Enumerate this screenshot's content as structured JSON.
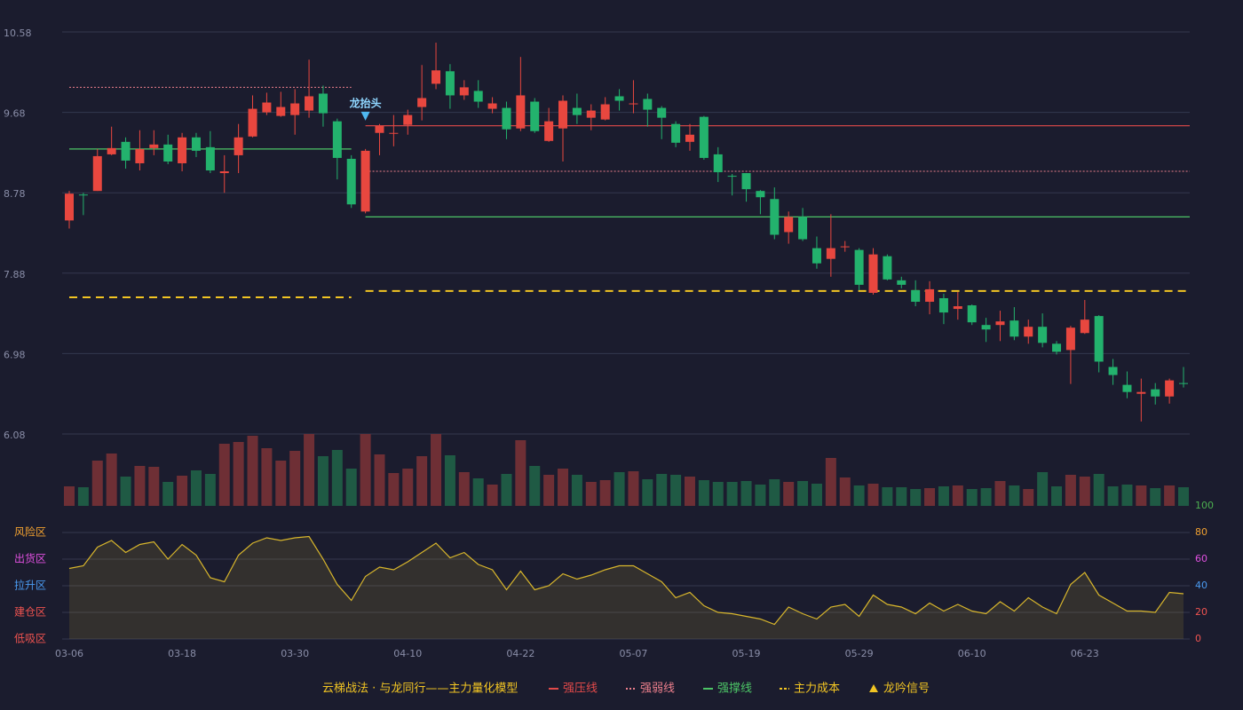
{
  "chart_data": {
    "type": "candlestick",
    "title": "云梯战法 · 与龙同行——主力量化模型",
    "categories": [
      "03-06",
      null,
      null,
      null,
      null,
      null,
      null,
      null,
      "03-18",
      null,
      null,
      null,
      null,
      null,
      null,
      null,
      "03-30",
      null,
      null,
      null,
      null,
      null,
      null,
      null,
      "04-10",
      null,
      null,
      null,
      null,
      null,
      null,
      null,
      "04-22",
      null,
      null,
      null,
      null,
      null,
      null,
      null,
      "05-07",
      null,
      null,
      null,
      null,
      null,
      null,
      null,
      "05-19",
      null,
      null,
      null,
      null,
      null,
      null,
      null,
      "05-29",
      null,
      null,
      null,
      null,
      null,
      null,
      null,
      "06-10",
      null,
      null,
      null,
      null,
      null,
      null,
      null,
      "06-23",
      null,
      null,
      null,
      null,
      null,
      null,
      null
    ],
    "open": [
      8.47,
      8.76,
      8.8,
      9.21,
      9.35,
      9.11,
      9.28,
      9.32,
      9.11,
      9.4,
      9.29,
      9.0,
      9.2,
      9.41,
      9.68,
      9.64,
      9.65,
      9.7,
      9.89,
      9.58,
      9.16,
      8.57,
      9.45,
      9.44,
      9.54,
      9.74,
      10.0,
      10.14,
      9.87,
      9.92,
      9.72,
      9.73,
      9.5,
      9.8,
      9.36,
      9.5,
      9.73,
      9.62,
      9.6,
      9.86,
      9.77,
      9.83,
      9.73,
      9.55,
      9.35,
      9.63,
      9.21,
      8.97,
      9.0,
      8.8,
      8.71,
      8.34,
      8.51,
      8.16,
      8.04,
      8.17,
      8.14,
      7.66,
      8.07,
      7.8,
      7.69,
      7.56,
      7.6,
      7.48,
      7.52,
      7.3,
      7.3,
      7.35,
      7.17,
      7.28,
      7.09,
      7.02,
      7.21,
      7.4,
      6.83,
      6.63,
      6.53,
      6.58,
      6.5,
      6.65
    ],
    "close": [
      8.77,
      8.75,
      9.19,
      9.28,
      9.14,
      9.27,
      9.32,
      9.13,
      9.4,
      9.25,
      9.03,
      9.02,
      9.4,
      9.72,
      9.79,
      9.74,
      9.78,
      9.86,
      9.67,
      9.17,
      8.65,
      9.25,
      9.53,
      9.45,
      9.65,
      9.84,
      10.15,
      9.87,
      9.96,
      9.8,
      9.78,
      9.49,
      9.87,
      9.47,
      9.58,
      9.81,
      9.65,
      9.7,
      9.77,
      9.81,
      9.78,
      9.71,
      9.62,
      9.34,
      9.43,
      9.17,
      9.01,
      8.96,
      8.82,
      8.73,
      8.31,
      8.51,
      8.26,
      7.99,
      8.16,
      8.18,
      7.75,
      8.09,
      7.81,
      7.75,
      7.56,
      7.7,
      7.44,
      7.51,
      7.33,
      7.25,
      7.34,
      7.17,
      7.28,
      7.1,
      7.0,
      7.27,
      7.36,
      6.89,
      6.74,
      6.55,
      6.55,
      6.5,
      6.68,
      6.64
    ],
    "high": [
      8.8,
      8.78,
      9.27,
      9.52,
      9.4,
      9.48,
      9.48,
      9.43,
      9.45,
      9.45,
      9.47,
      9.2,
      9.55,
      9.87,
      9.9,
      9.91,
      9.94,
      10.27,
      9.98,
      9.61,
      9.2,
      9.27,
      9.55,
      9.65,
      9.71,
      10.21,
      10.46,
      10.22,
      10.04,
      10.04,
      9.85,
      9.8,
      10.3,
      9.84,
      9.73,
      9.87,
      9.89,
      9.77,
      9.85,
      9.94,
      10.04,
      9.89,
      9.75,
      9.58,
      9.55,
      9.64,
      9.29,
      8.99,
      9.0,
      8.81,
      8.84,
      8.57,
      8.61,
      8.29,
      8.54,
      8.24,
      8.16,
      8.16,
      8.09,
      7.84,
      7.8,
      7.79,
      7.65,
      7.67,
      7.53,
      7.38,
      7.46,
      7.5,
      7.36,
      7.43,
      7.12,
      7.29,
      7.58,
      7.41,
      6.92,
      6.78,
      6.7,
      6.65,
      6.7,
      6.83
    ],
    "low": [
      8.38,
      8.53,
      8.8,
      9.2,
      9.05,
      9.03,
      9.2,
      9.1,
      9.02,
      9.18,
      9.0,
      8.78,
      9.0,
      9.4,
      9.65,
      9.63,
      9.43,
      9.62,
      9.52,
      8.93,
      8.61,
      8.55,
      9.2,
      9.3,
      9.43,
      9.59,
      9.94,
      9.72,
      9.82,
      9.73,
      9.67,
      9.38,
      9.47,
      9.45,
      9.35,
      9.13,
      9.55,
      9.48,
      9.59,
      9.7,
      9.67,
      9.52,
      9.38,
      9.29,
      9.25,
      9.15,
      8.9,
      8.75,
      8.68,
      8.54,
      8.26,
      8.21,
      8.24,
      7.93,
      7.84,
      8.12,
      7.69,
      7.64,
      7.8,
      7.71,
      7.51,
      7.42,
      7.31,
      7.36,
      7.3,
      7.11,
      7.12,
      7.13,
      7.09,
      7.05,
      6.97,
      6.64,
      7.2,
      6.77,
      6.63,
      6.48,
      6.22,
      6.41,
      6.42,
      6.6
    ],
    "up_color": "#e8473f",
    "down_color": "#23b26d",
    "ylim": [
      6.08,
      10.58
    ],
    "yticks": [
      6.08,
      6.98,
      7.88,
      8.78,
      9.68,
      10.58
    ],
    "grid": true,
    "volume": {
      "values": [
        22,
        21,
        51,
        59,
        33,
        45,
        44,
        27,
        34,
        40,
        36,
        70,
        72,
        79,
        65,
        51,
        62,
        81,
        56,
        63,
        42,
        81,
        58,
        37,
        42,
        56,
        81,
        57,
        38,
        31,
        24,
        36,
        74,
        45,
        35,
        42,
        35,
        27,
        29,
        38,
        39,
        30,
        36,
        35,
        33,
        29,
        27,
        27,
        28,
        24,
        30,
        27,
        28,
        25,
        54,
        32,
        23,
        25,
        21,
        21,
        19,
        20,
        22,
        23,
        19,
        20,
        28,
        23,
        19,
        38,
        22,
        35,
        33,
        36,
        22,
        24,
        23,
        20,
        23,
        21
      ],
      "ylim": [
        0,
        81
      ],
      "up_color": "#6e2f35",
      "down_color": "#1f5a44"
    },
    "levels": [
      {
        "name": "强压线",
        "color": "#e24a4a",
        "dash": "none",
        "width": 1.2,
        "values": [
          null,
          null,
          null,
          null,
          null,
          null,
          null,
          null,
          null,
          null,
          null,
          null,
          null,
          null,
          null,
          null,
          null,
          null,
          null,
          null,
          null,
          9.53,
          9.53,
          9.53,
          9.53,
          9.53,
          9.53,
          9.53,
          9.53,
          9.53,
          9.53,
          9.53,
          9.53,
          9.53,
          9.53,
          9.53,
          9.53,
          9.53,
          9.53,
          9.53,
          9.53,
          9.53,
          9.53,
          9.53,
          9.53,
          9.53,
          9.53,
          9.53,
          9.53,
          9.53,
          9.53,
          9.53,
          9.53,
          9.53,
          9.53,
          9.53,
          9.53,
          9.53,
          9.53,
          9.53,
          9.53,
          9.53,
          9.53,
          9.53,
          9.53,
          9.53,
          9.53,
          9.53,
          9.53,
          9.53,
          9.53,
          9.53,
          9.53,
          9.53,
          9.53,
          9.53,
          9.53,
          9.53,
          9.53,
          9.53
        ]
      },
      {
        "name": "强弱线",
        "color": "#ec7f8c",
        "dash": "2,2",
        "width": 1,
        "values": [
          9.96,
          9.96,
          9.96,
          9.96,
          9.96,
          9.96,
          9.96,
          9.96,
          9.96,
          9.96,
          9.96,
          9.96,
          9.96,
          9.96,
          9.96,
          9.96,
          9.96,
          9.96,
          9.96,
          9.96,
          9.96,
          9.02,
          9.02,
          9.02,
          9.02,
          9.02,
          9.02,
          9.02,
          9.02,
          9.02,
          9.02,
          9.02,
          9.02,
          9.02,
          9.02,
          9.02,
          9.02,
          9.02,
          9.02,
          9.02,
          9.02,
          9.02,
          9.02,
          9.02,
          9.02,
          9.02,
          9.02,
          9.02,
          9.02,
          9.02,
          9.02,
          9.02,
          9.02,
          9.02,
          9.02,
          9.02,
          9.02,
          9.02,
          9.02,
          9.02,
          9.02,
          9.02,
          9.02,
          9.02,
          9.02,
          9.02,
          9.02,
          9.02,
          9.02,
          9.02,
          9.02,
          9.02,
          9.02,
          9.02,
          9.02,
          9.02,
          9.02,
          9.02,
          9.02,
          9.02
        ]
      },
      {
        "name": "强撑线",
        "color": "#4cc466",
        "dash": "none",
        "width": 1.2,
        "values": [
          9.27,
          9.27,
          9.27,
          9.27,
          9.27,
          9.27,
          9.27,
          9.27,
          9.27,
          9.27,
          9.27,
          9.27,
          9.27,
          9.27,
          9.27,
          9.27,
          9.27,
          9.27,
          9.27,
          9.27,
          9.27,
          8.51,
          8.51,
          8.51,
          8.51,
          8.51,
          8.51,
          8.51,
          8.51,
          8.51,
          8.51,
          8.51,
          8.51,
          8.51,
          8.51,
          8.51,
          8.51,
          8.51,
          8.51,
          8.51,
          8.51,
          8.51,
          8.51,
          8.51,
          8.51,
          8.51,
          8.51,
          8.51,
          8.51,
          8.51,
          8.51,
          8.51,
          8.51,
          8.51,
          8.51,
          8.51,
          8.51,
          8.51,
          8.51,
          8.51,
          8.51,
          8.51,
          8.51,
          8.51,
          8.51,
          8.51,
          8.51,
          8.51,
          8.51,
          8.51,
          8.51,
          8.51,
          8.51,
          8.51,
          8.51,
          8.51,
          8.51,
          8.51,
          8.51,
          8.51
        ]
      },
      {
        "name": "主力成本",
        "color": "#f2c523",
        "dash": "9,6",
        "width": 2,
        "values": [
          7.61,
          7.61,
          7.61,
          7.61,
          7.61,
          7.61,
          7.61,
          7.61,
          7.61,
          7.61,
          7.61,
          7.61,
          7.61,
          7.61,
          7.61,
          7.61,
          7.61,
          7.61,
          7.61,
          7.61,
          7.61,
          7.68,
          7.68,
          7.68,
          7.68,
          7.68,
          7.68,
          7.68,
          7.68,
          7.68,
          7.68,
          7.68,
          7.68,
          7.68,
          7.68,
          7.68,
          7.68,
          7.68,
          7.68,
          7.68,
          7.68,
          7.68,
          7.68,
          7.68,
          7.68,
          7.68,
          7.68,
          7.68,
          7.68,
          7.68,
          7.68,
          7.68,
          7.68,
          7.68,
          7.68,
          7.68,
          7.68,
          7.68,
          7.68,
          7.68,
          7.68,
          7.68,
          7.68,
          7.68,
          7.68,
          7.68,
          7.68,
          7.68,
          7.68,
          7.68,
          7.68,
          7.68,
          7.68,
          7.68,
          7.68,
          7.68,
          7.68,
          7.68,
          7.68,
          7.68
        ]
      }
    ],
    "signal": {
      "name": "龙吟信号",
      "color": "#f2c523",
      "marker_color": "#4fb8f0",
      "labels": [
        null,
        null,
        null,
        null,
        null,
        null,
        null,
        null,
        null,
        null,
        null,
        null,
        null,
        null,
        null,
        null,
        null,
        null,
        null,
        null,
        null,
        "龙抬头",
        null,
        null,
        null,
        null,
        null,
        null,
        null,
        null,
        null,
        null,
        null,
        null,
        null,
        null,
        null,
        null,
        null,
        null,
        null,
        null,
        null,
        null,
        null,
        null,
        null,
        null,
        null,
        null,
        null,
        null,
        null,
        null,
        null,
        null,
        null,
        null,
        null,
        null,
        null,
        null,
        null,
        null,
        null,
        null,
        null,
        null,
        null,
        null,
        null,
        null,
        null,
        null,
        null,
        null,
        null,
        null,
        null,
        null
      ]
    },
    "indicator": {
      "values": [
        53,
        55,
        69,
        74,
        65,
        71,
        73,
        60,
        71,
        63,
        46,
        43,
        63,
        72,
        76,
        74,
        76,
        77,
        60,
        41,
        29,
        47,
        54,
        52,
        58,
        65,
        72,
        61,
        65,
        56,
        52,
        37,
        51,
        37,
        40,
        49,
        45,
        48,
        52,
        55,
        55,
        49,
        43,
        31,
        35,
        25,
        20,
        19,
        17,
        15,
        11,
        24,
        19,
        15,
        24,
        26,
        17,
        33,
        26,
        24,
        19,
        27,
        21,
        26,
        21,
        19,
        28,
        21,
        31,
        24,
        19,
        41,
        50,
        33,
        27,
        21,
        21,
        20,
        35,
        34
      ],
      "color": "#d8b62c",
      "y2lim": [
        0,
        100
      ],
      "y2ticks": [
        0,
        20,
        40,
        60,
        80,
        100
      ],
      "y2tick_colors": [
        "#ef5350",
        "#ef5350",
        "#4a9af0",
        "#e050e0",
        "#f0a030",
        "#4caf50"
      ],
      "zones": [
        {
          "value": 80,
          "label": "风险区",
          "color": "#f0a030"
        },
        {
          "value": 60,
          "label": "出货区",
          "color": "#e050e0"
        },
        {
          "value": 40,
          "label": "拉升区",
          "color": "#4a9af0"
        },
        {
          "value": 20,
          "label": "建仓区",
          "color": "#ef5350"
        },
        {
          "value": 0,
          "label": "低吸区",
          "color": "#ef5350"
        }
      ]
    }
  }
}
